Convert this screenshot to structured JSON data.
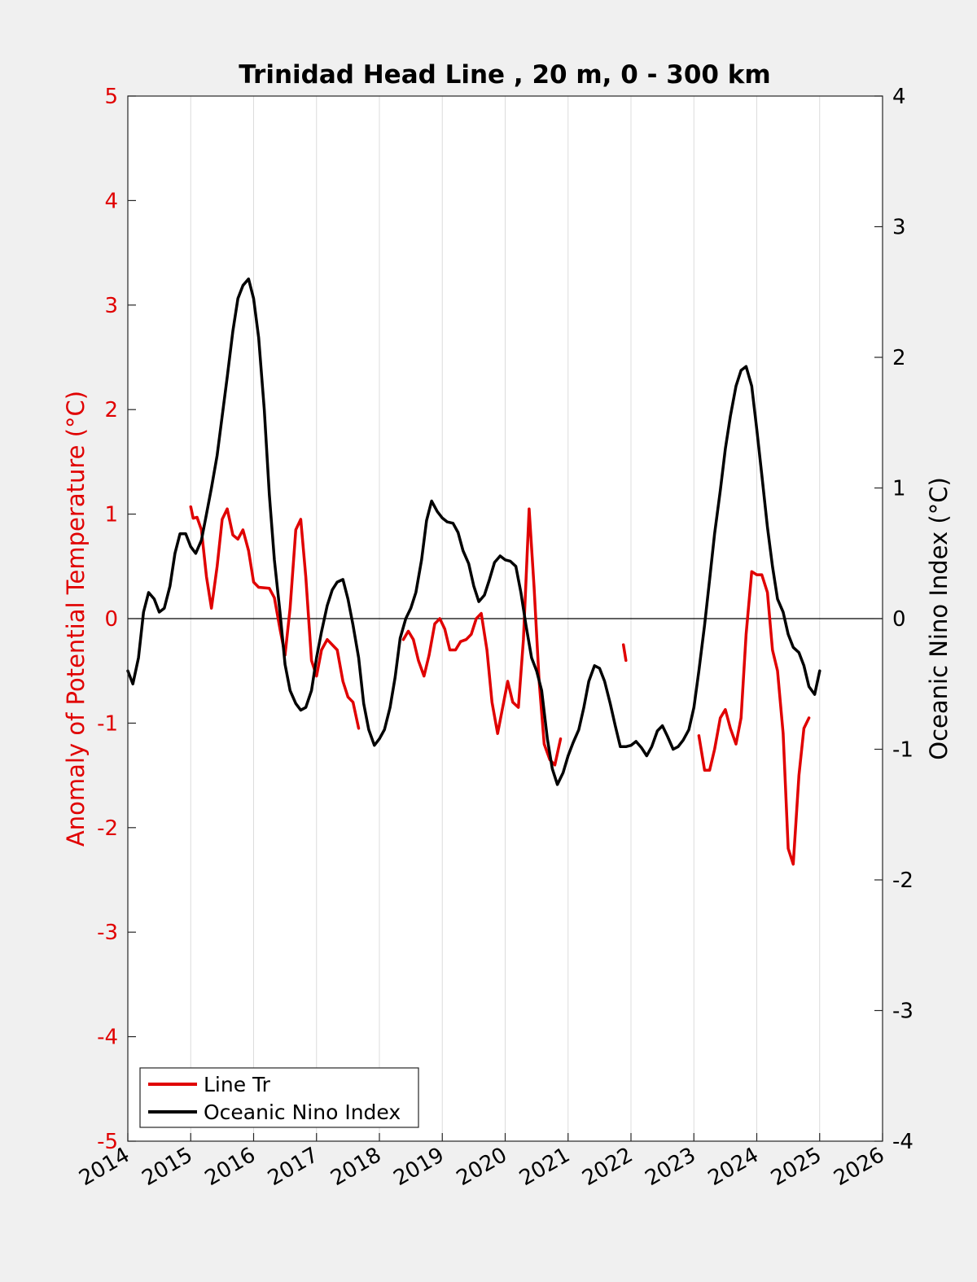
{
  "chart_data": {
    "type": "line",
    "title": "Trinidad Head Line , 20 m, 0 - 300 km",
    "xlim": [
      2014,
      2026
    ],
    "xticks": [
      "2014",
      "2015",
      "2016",
      "2017",
      "2018",
      "2019",
      "2020",
      "2021",
      "2022",
      "2023",
      "2024",
      "2025",
      "2026"
    ],
    "ylabel_left": "Anomaly of Potential Temperature (°C)",
    "ylim_left": [
      -5,
      5
    ],
    "yticks_left": [
      "5",
      "4",
      "3",
      "2",
      "1",
      "0",
      "-1",
      "-2",
      "-3",
      "-4",
      "-5"
    ],
    "ylabel_right": "Oceanic Nino Index (°C)",
    "ylim_right": [
      -4,
      4
    ],
    "yticks_right": [
      "4",
      "3",
      "2",
      "1",
      "0",
      "-1",
      "-2",
      "-3",
      "-4"
    ],
    "grid": "vertical",
    "legend_position": "bottom-left",
    "colors": {
      "line_tr": "#e00000",
      "oni": "#000000",
      "zero_line": "#000000"
    },
    "series": [
      {
        "name": "Line Tr",
        "axis": "left",
        "segments": [
          [
            [
              2015.0,
              1.07
            ],
            [
              2015.04,
              0.96
            ],
            [
              2015.1,
              0.97
            ],
            [
              2015.17,
              0.85
            ],
            [
              2015.25,
              0.4
            ],
            [
              2015.33,
              0.1
            ],
            [
              2015.42,
              0.5
            ],
            [
              2015.5,
              0.95
            ],
            [
              2015.58,
              1.05
            ],
            [
              2015.67,
              0.8
            ],
            [
              2015.75,
              0.76
            ],
            [
              2015.83,
              0.85
            ],
            [
              2015.92,
              0.65
            ],
            [
              2016.0,
              0.35
            ],
            [
              2016.08,
              0.3
            ],
            [
              2016.25,
              0.29
            ],
            [
              2016.33,
              0.2
            ],
            [
              2016.42,
              -0.1
            ],
            [
              2016.5,
              -0.35
            ],
            [
              2016.58,
              0.1
            ],
            [
              2016.67,
              0.85
            ],
            [
              2016.75,
              0.95
            ],
            [
              2016.83,
              0.4
            ],
            [
              2016.92,
              -0.4
            ],
            [
              2017.0,
              -0.55
            ],
            [
              2017.08,
              -0.3
            ],
            [
              2017.17,
              -0.2
            ],
            [
              2017.33,
              -0.3
            ],
            [
              2017.42,
              -0.6
            ],
            [
              2017.5,
              -0.75
            ],
            [
              2017.58,
              -0.8
            ],
            [
              2017.67,
              -1.05
            ]
          ],
          [
            [
              2018.38,
              -0.2
            ],
            [
              2018.46,
              -0.12
            ],
            [
              2018.54,
              -0.2
            ],
            [
              2018.62,
              -0.4
            ],
            [
              2018.71,
              -0.55
            ],
            [
              2018.79,
              -0.35
            ],
            [
              2018.88,
              -0.05
            ],
            [
              2018.96,
              0.0
            ],
            [
              2019.04,
              -0.1
            ],
            [
              2019.12,
              -0.3
            ],
            [
              2019.21,
              -0.3
            ],
            [
              2019.29,
              -0.22
            ],
            [
              2019.38,
              -0.2
            ],
            [
              2019.46,
              -0.15
            ],
            [
              2019.54,
              0.0
            ],
            [
              2019.62,
              0.05
            ],
            [
              2019.71,
              -0.3
            ],
            [
              2019.79,
              -0.8
            ],
            [
              2019.88,
              -1.1
            ],
            [
              2019.96,
              -0.85
            ],
            [
              2020.04,
              -0.6
            ],
            [
              2020.12,
              -0.8
            ],
            [
              2020.21,
              -0.85
            ],
            [
              2020.29,
              -0.2
            ],
            [
              2020.38,
              1.05
            ],
            [
              2020.46,
              0.3
            ],
            [
              2020.54,
              -0.6
            ],
            [
              2020.62,
              -1.2
            ],
            [
              2020.71,
              -1.35
            ],
            [
              2020.79,
              -1.4
            ],
            [
              2020.88,
              -1.15
            ]
          ],
          [
            [
              2021.88,
              -0.25
            ],
            [
              2021.92,
              -0.4
            ]
          ],
          [
            [
              2023.08,
              -1.12
            ],
            [
              2023.17,
              -1.45
            ],
            [
              2023.25,
              -1.45
            ],
            [
              2023.33,
              -1.25
            ],
            [
              2023.42,
              -0.95
            ],
            [
              2023.5,
              -0.87
            ],
            [
              2023.58,
              -1.05
            ],
            [
              2023.67,
              -1.2
            ],
            [
              2023.75,
              -0.95
            ],
            [
              2023.83,
              -0.15
            ],
            [
              2023.92,
              0.45
            ],
            [
              2024.0,
              0.42
            ],
            [
              2024.08,
              0.42
            ],
            [
              2024.17,
              0.25
            ],
            [
              2024.25,
              -0.3
            ],
            [
              2024.33,
              -0.5
            ],
            [
              2024.42,
              -1.1
            ],
            [
              2024.5,
              -2.2
            ],
            [
              2024.58,
              -2.35
            ],
            [
              2024.67,
              -1.5
            ],
            [
              2024.75,
              -1.05
            ],
            [
              2024.83,
              -0.95
            ]
          ]
        ]
      },
      {
        "name": "Oceanic Nino Index",
        "axis": "right",
        "segments": [
          [
            [
              2014.0,
              -0.4
            ],
            [
              2014.08,
              -0.5
            ],
            [
              2014.17,
              -0.3
            ],
            [
              2014.25,
              0.05
            ],
            [
              2014.33,
              0.2
            ],
            [
              2014.42,
              0.15
            ],
            [
              2014.5,
              0.05
            ],
            [
              2014.58,
              0.08
            ],
            [
              2014.67,
              0.25
            ],
            [
              2014.75,
              0.5
            ],
            [
              2014.83,
              0.65
            ],
            [
              2014.92,
              0.65
            ],
            [
              2015.0,
              0.55
            ],
            [
              2015.08,
              0.5
            ],
            [
              2015.17,
              0.6
            ],
            [
              2015.25,
              0.8
            ],
            [
              2015.33,
              1.0
            ],
            [
              2015.42,
              1.25
            ],
            [
              2015.5,
              1.55
            ],
            [
              2015.58,
              1.85
            ],
            [
              2015.67,
              2.2
            ],
            [
              2015.75,
              2.45
            ],
            [
              2015.83,
              2.55
            ],
            [
              2015.92,
              2.6
            ],
            [
              2016.0,
              2.45
            ],
            [
              2016.08,
              2.15
            ],
            [
              2016.17,
              1.6
            ],
            [
              2016.25,
              0.95
            ],
            [
              2016.33,
              0.45
            ],
            [
              2016.42,
              0.05
            ],
            [
              2016.5,
              -0.35
            ],
            [
              2016.58,
              -0.55
            ],
            [
              2016.67,
              -0.65
            ],
            [
              2016.75,
              -0.7
            ],
            [
              2016.83,
              -0.68
            ],
            [
              2016.92,
              -0.55
            ],
            [
              2017.0,
              -0.3
            ],
            [
              2017.08,
              -0.1
            ],
            [
              2017.17,
              0.1
            ],
            [
              2017.25,
              0.22
            ],
            [
              2017.33,
              0.28
            ],
            [
              2017.42,
              0.3
            ],
            [
              2017.5,
              0.15
            ],
            [
              2017.58,
              -0.05
            ],
            [
              2017.67,
              -0.3
            ],
            [
              2017.75,
              -0.65
            ],
            [
              2017.83,
              -0.85
            ],
            [
              2017.92,
              -0.97
            ],
            [
              2018.0,
              -0.92
            ],
            [
              2018.08,
              -0.85
            ],
            [
              2018.17,
              -0.68
            ],
            [
              2018.25,
              -0.45
            ],
            [
              2018.33,
              -0.15
            ],
            [
              2018.42,
              0.0
            ],
            [
              2018.5,
              0.08
            ],
            [
              2018.58,
              0.2
            ],
            [
              2018.67,
              0.45
            ],
            [
              2018.75,
              0.75
            ],
            [
              2018.83,
              0.9
            ],
            [
              2018.92,
              0.82
            ],
            [
              2019.0,
              0.77
            ],
            [
              2019.08,
              0.74
            ],
            [
              2019.17,
              0.73
            ],
            [
              2019.25,
              0.66
            ],
            [
              2019.33,
              0.52
            ],
            [
              2019.42,
              0.42
            ],
            [
              2019.5,
              0.25
            ],
            [
              2019.58,
              0.13
            ],
            [
              2019.67,
              0.18
            ],
            [
              2019.75,
              0.3
            ],
            [
              2019.83,
              0.43
            ],
            [
              2019.92,
              0.48
            ],
            [
              2020.0,
              0.45
            ],
            [
              2020.08,
              0.44
            ],
            [
              2020.17,
              0.4
            ],
            [
              2020.25,
              0.2
            ],
            [
              2020.33,
              -0.05
            ],
            [
              2020.42,
              -0.3
            ],
            [
              2020.5,
              -0.4
            ],
            [
              2020.58,
              -0.55
            ],
            [
              2020.67,
              -0.92
            ],
            [
              2020.75,
              -1.15
            ],
            [
              2020.83,
              -1.27
            ],
            [
              2020.92,
              -1.18
            ],
            [
              2021.0,
              -1.05
            ],
            [
              2021.08,
              -0.95
            ],
            [
              2021.17,
              -0.85
            ],
            [
              2021.25,
              -0.68
            ],
            [
              2021.33,
              -0.48
            ],
            [
              2021.42,
              -0.36
            ],
            [
              2021.5,
              -0.38
            ],
            [
              2021.58,
              -0.48
            ],
            [
              2021.67,
              -0.65
            ],
            [
              2021.75,
              -0.82
            ],
            [
              2021.83,
              -0.98
            ],
            [
              2021.92,
              -0.98
            ],
            [
              2022.0,
              -0.97
            ],
            [
              2022.08,
              -0.94
            ],
            [
              2022.17,
              -0.99
            ],
            [
              2022.25,
              -1.05
            ],
            [
              2022.33,
              -0.98
            ],
            [
              2022.42,
              -0.86
            ],
            [
              2022.5,
              -0.82
            ],
            [
              2022.58,
              -0.9
            ],
            [
              2022.67,
              -1.0
            ],
            [
              2022.75,
              -0.98
            ],
            [
              2022.83,
              -0.93
            ],
            [
              2022.92,
              -0.85
            ],
            [
              2023.0,
              -0.68
            ],
            [
              2023.08,
              -0.4
            ],
            [
              2023.17,
              -0.05
            ],
            [
              2023.25,
              0.3
            ],
            [
              2023.33,
              0.65
            ],
            [
              2023.42,
              0.98
            ],
            [
              2023.5,
              1.3
            ],
            [
              2023.58,
              1.55
            ],
            [
              2023.67,
              1.78
            ],
            [
              2023.75,
              1.9
            ],
            [
              2023.83,
              1.93
            ],
            [
              2023.92,
              1.78
            ],
            [
              2024.0,
              1.45
            ],
            [
              2024.08,
              1.1
            ],
            [
              2024.17,
              0.7
            ],
            [
              2024.25,
              0.4
            ],
            [
              2024.33,
              0.15
            ],
            [
              2024.42,
              0.05
            ],
            [
              2024.5,
              -0.12
            ],
            [
              2024.58,
              -0.22
            ],
            [
              2024.67,
              -0.26
            ],
            [
              2024.75,
              -0.36
            ],
            [
              2024.83,
              -0.52
            ],
            [
              2024.92,
              -0.58
            ],
            [
              2025.0,
              -0.4
            ]
          ]
        ]
      }
    ]
  }
}
